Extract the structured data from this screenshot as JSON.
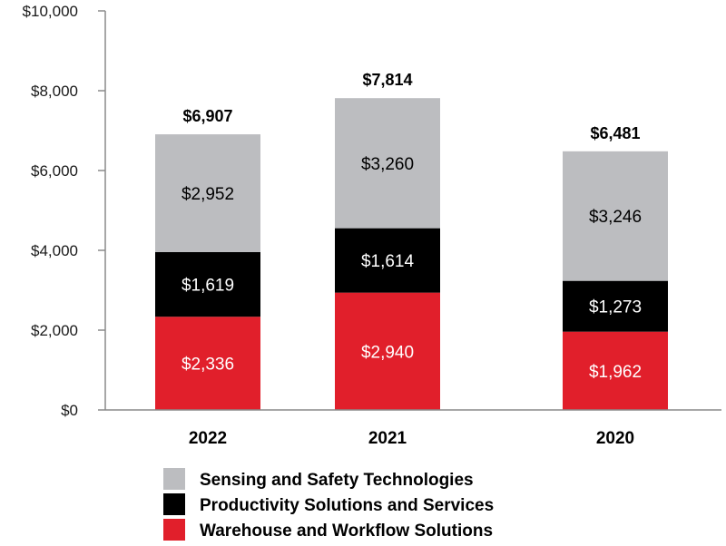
{
  "chart_data": {
    "type": "bar",
    "stacked": true,
    "categories": [
      "2022",
      "2021",
      "2020"
    ],
    "series": [
      {
        "name": "Warehouse and Workflow Solutions",
        "color": "#e11f2b",
        "label_color": "#ffffff",
        "values": [
          2336,
          2940,
          1962
        ],
        "labels": [
          "$2,336",
          "$2,940",
          "$1,962"
        ]
      },
      {
        "name": "Productivity Solutions and Services",
        "color": "#000000",
        "label_color": "#ffffff",
        "values": [
          1619,
          1614,
          1273
        ],
        "labels": [
          "$1,619",
          "$1,614",
          "$1,273"
        ]
      },
      {
        "name": "Sensing and Safety Technologies",
        "color": "#bcbdc0",
        "label_color": "#000000",
        "values": [
          2952,
          3260,
          3246
        ],
        "labels": [
          "$2,952",
          "$3,260",
          "$3,246"
        ]
      }
    ],
    "totals": [
      6907,
      7814,
      6481
    ],
    "total_labels": [
      "$6,907",
      "$7,814",
      "$6,481"
    ],
    "ylim": [
      0,
      10000
    ],
    "yticks": [
      0,
      2000,
      4000,
      6000,
      8000,
      10000
    ],
    "ytick_labels": [
      "$0",
      "$2,000",
      "$4,000",
      "$6,000",
      "$8,000",
      "$10,000"
    ],
    "legend_order": [
      "Sensing and Safety Technologies",
      "Productivity Solutions and Services",
      "Warehouse and Workflow Solutions"
    ],
    "legend_position": "bottom-center",
    "title": "",
    "xlabel": "",
    "ylabel": "",
    "grid": false
  }
}
